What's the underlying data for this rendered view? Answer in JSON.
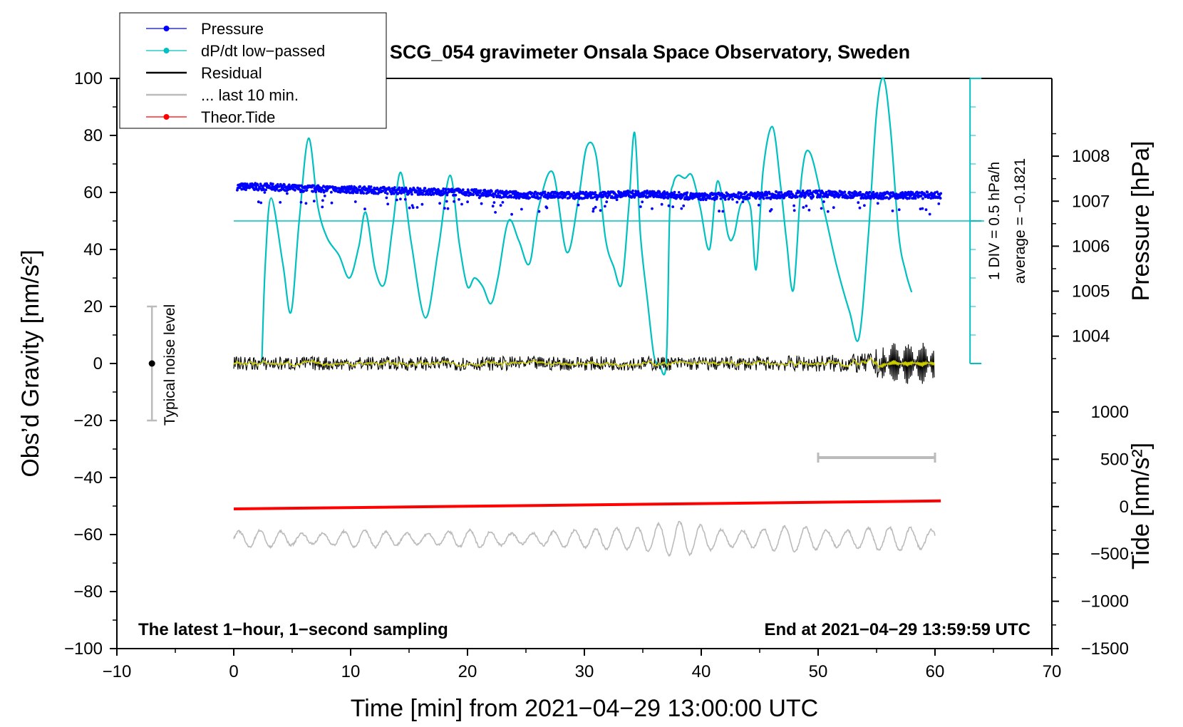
{
  "chart_data": {
    "type": "line",
    "title": "SCG_054 gravimeter Onsala Space Observatory, Sweden",
    "xlabel": "Time [min] from 2021−04−29 13:00:00 UTC",
    "ylabel": "Obs’d Gravity [nm/s²]",
    "y2label": "Pressure [hPa]",
    "y3label": "Tide [nm/s²]",
    "xlim": [
      -10,
      70
    ],
    "ylim": [
      -100,
      100
    ],
    "x_ticks": [
      -10,
      0,
      10,
      20,
      30,
      40,
      50,
      60,
      70
    ],
    "x_tick_labels": [
      "−10",
      "0",
      "10",
      "20",
      "30",
      "40",
      "50",
      "60",
      "70"
    ],
    "y_ticks": [
      -100,
      -80,
      -60,
      -40,
      -20,
      0,
      20,
      40,
      60,
      80,
      100
    ],
    "y_tick_labels": [
      "−100",
      "−80",
      "−60",
      "−40",
      "−20",
      "0",
      "20",
      "40",
      "60",
      "80",
      "100"
    ],
    "pressure_ticks": [
      1004,
      1005,
      1006,
      1007,
      1008
    ],
    "pressure_tick_labels": [
      "1004",
      "1005",
      "1006",
      "1007",
      "1008"
    ],
    "pressure_axis_gravity_equiv": {
      "hpa": [
        1003,
        1009
      ],
      "gravity": [
        -6.2,
        88.5
      ]
    },
    "tide_ticks": [
      -1500,
      -1000,
      -500,
      0,
      500,
      1000
    ],
    "tide_tick_labels": [
      "−1500",
      "−1000",
      "−500",
      "0",
      "500",
      "1000"
    ],
    "tide_axis_gravity_equiv": {
      "tide": [
        -1500,
        1000
      ],
      "gravity": [
        -100,
        -17
      ]
    },
    "legend": [
      {
        "label": "Pressure",
        "color": "#0000ff",
        "marker": "dot"
      },
      {
        "label": "dP/dt low−passed",
        "color": "#00c0c0",
        "marker": "dot"
      },
      {
        "label": "Residual",
        "color": "#000000",
        "marker": "none"
      },
      {
        "label": "... last 10 min.",
        "color": "#bbbbbb",
        "marker": "none"
      },
      {
        "label": "Theor.Tide",
        "color": "#ff0000",
        "marker": "dot"
      }
    ],
    "legend_position": "top-left",
    "annotations": {
      "footer_left": "The latest 1−hour, 1−second sampling",
      "footer_right": "End at 2021−04−29 13:59:59 UTC",
      "noise_label": "Typical noise level",
      "noise_x": -7,
      "noise_range": [
        -20,
        20
      ],
      "div_label": "1 DIV = 0.5 hPa/h",
      "average_label": "average = −0.1821",
      "dpdt_zero_level": 50,
      "dpdt_scale_x": 63,
      "dpdt_scale_range": [
        0,
        100
      ],
      "last10_bar": {
        "x": [
          50,
          60
        ],
        "y": -33
      }
    },
    "series": [
      {
        "name": "Pressure",
        "color": "#0000ff",
        "x_range": [
          0.3,
          60.5
        ],
        "gravity_equiv": [
          [
            0,
            62
          ],
          [
            3,
            62
          ],
          [
            5,
            61.5
          ],
          [
            10,
            61
          ],
          [
            20,
            60
          ],
          [
            25,
            59
          ],
          [
            30,
            59
          ],
          [
            35,
            59.5
          ],
          [
            40,
            58.5
          ],
          [
            45,
            59
          ],
          [
            50,
            59.5
          ],
          [
            55,
            59
          ],
          [
            60,
            59
          ]
        ]
      },
      {
        "name": "dP/dt low−passed",
        "color": "#00c0c0",
        "x": [
          2.4,
          2.7,
          3.2,
          4.2,
          4.9,
          5.6,
          6.4,
          7.2,
          8.0,
          9.0,
          9.9,
          10.7,
          11.3,
          12.1,
          12.9,
          13.6,
          14.3,
          15.2,
          16.4,
          17.5,
          18.5,
          19.3,
          20.0,
          20.6,
          21.3,
          22.0,
          22.6,
          23.5,
          24.4,
          25.3,
          26.1,
          27.3,
          28.5,
          29.5,
          30.2,
          31.0,
          31.8,
          32.5,
          33.2,
          33.8,
          34.3,
          34.8,
          35.4,
          35.9,
          36.2,
          36.4,
          37.0,
          37.3,
          37.6,
          38.0,
          38.6,
          39.2,
          39.9,
          40.7,
          41.4,
          42.3,
          42.8,
          43.4,
          44.2,
          44.7,
          45.3,
          46.1,
          46.8,
          47.3,
          47.9,
          48.6,
          49.3,
          50.5,
          51.6,
          52.7,
          53.5,
          54.3,
          55.0,
          55.6,
          56.2,
          56.9,
          57.5,
          58.0
        ],
        "y": [
          0,
          35,
          58,
          35,
          18,
          50,
          79,
          55,
          44,
          38,
          30,
          41,
          53,
          33,
          28,
          48,
          67,
          42,
          16,
          40,
          66,
          42,
          27,
          30,
          27,
          21,
          30,
          50,
          43,
          35,
          55,
          67,
          39,
          58,
          76,
          73,
          44,
          34,
          28,
          55,
          81,
          45,
          22,
          4,
          0,
          0,
          0,
          53,
          63,
          66,
          65,
          66,
          55,
          40,
          64,
          45,
          45,
          56,
          55,
          33,
          68,
          83,
          62,
          43,
          26,
          66,
          74,
          54,
          34,
          18,
          9,
          45,
          88,
          100,
          82,
          45,
          32,
          25
        ]
      },
      {
        "name": "Residual",
        "color": "#000000",
        "x_range": [
          0,
          60
        ],
        "amplitude": [
          [
            0,
            2.5
          ],
          [
            45,
            2.5
          ],
          [
            50,
            3
          ],
          [
            54,
            3.5
          ],
          [
            56,
            7
          ],
          [
            60,
            7
          ]
        ]
      },
      {
        "name": "Residual (low−passed)",
        "color": "#cccc00",
        "x_range": [
          0,
          60
        ]
      },
      {
        "name": "Theor.Tide",
        "color": "#ff0000",
        "x": [
          0,
          60.5
        ],
        "y": [
          -51,
          -48.2
        ]
      },
      {
        "name": "... last 10 min.",
        "color": "#bbbbbb",
        "x_range": [
          0,
          60
        ],
        "center": -61.5,
        "amplitude": [
          [
            0,
            3
          ],
          [
            30,
            3
          ],
          [
            33,
            6
          ],
          [
            38,
            6
          ],
          [
            45,
            4
          ],
          [
            50,
            5
          ],
          [
            56,
            4
          ],
          [
            60,
            5
          ]
        ]
      }
    ]
  }
}
